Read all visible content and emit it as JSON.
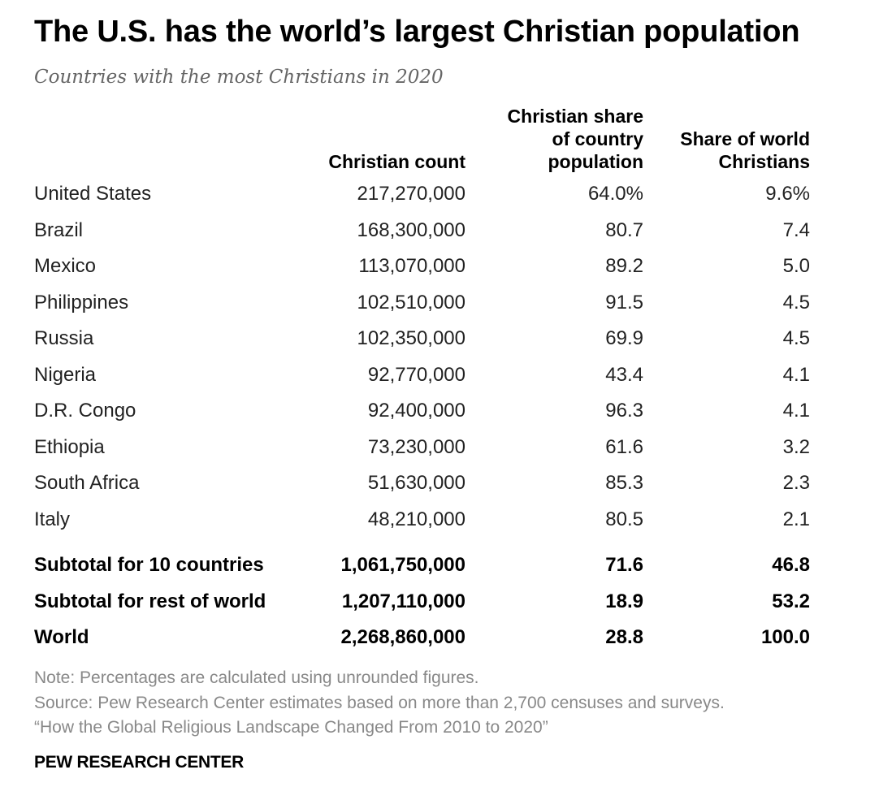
{
  "title": "The U.S. has the world’s largest Christian population",
  "subtitle": "Countries with the most Christians in 2020",
  "chart_data": {
    "type": "table",
    "columns": [
      {
        "key": "count",
        "lines": [
          "Christian count"
        ]
      },
      {
        "key": "share",
        "lines": [
          "Christian share",
          "of country",
          "population"
        ]
      },
      {
        "key": "world",
        "lines": [
          "Share of world",
          "Christians"
        ]
      }
    ],
    "rows": [
      {
        "country": "United States",
        "count": "217,270,000",
        "share": "64.0%",
        "world": "9.6%"
      },
      {
        "country": "Brazil",
        "count": "168,300,000",
        "share": "80.7",
        "world": "7.4"
      },
      {
        "country": "Mexico",
        "count": "113,070,000",
        "share": "89.2",
        "world": "5.0"
      },
      {
        "country": "Philippines",
        "count": "102,510,000",
        "share": "91.5",
        "world": "4.5"
      },
      {
        "country": "Russia",
        "count": "102,350,000",
        "share": "69.9",
        "world": "4.5"
      },
      {
        "country": "Nigeria",
        "count": "92,770,000",
        "share": "43.4",
        "world": "4.1"
      },
      {
        "country": "D.R. Congo",
        "count": "92,400,000",
        "share": "96.3",
        "world": "4.1"
      },
      {
        "country": "Ethiopia",
        "count": "73,230,000",
        "share": "61.6",
        "world": "3.2"
      },
      {
        "country": "South Africa",
        "count": "51,630,000",
        "share": "85.3",
        "world": "2.3"
      },
      {
        "country": "Italy",
        "count": "48,210,000",
        "share": "80.5",
        "world": "2.1"
      }
    ],
    "totals": [
      {
        "country": "Subtotal for 10 countries",
        "count": "1,061,750,000",
        "share": "71.6",
        "world": "46.8"
      },
      {
        "country": "Subtotal for rest of world",
        "count": "1,207,110,000",
        "share": "18.9",
        "world": "53.2"
      },
      {
        "country": "World",
        "count": "2,268,860,000",
        "share": "28.8",
        "world": "100.0"
      }
    ]
  },
  "notes": [
    "Note: Percentages are calculated using unrounded figures.",
    "Source: Pew Research Center estimates based on more than 2,700 censuses and surveys.",
    "“How the Global Religious Landscape Changed From 2010 to 2020”"
  ],
  "brand": "PEW RESEARCH CENTER",
  "colors": {
    "text": "#222222",
    "heading": "#000000",
    "subtitle": "#666666",
    "note": "#888888"
  }
}
